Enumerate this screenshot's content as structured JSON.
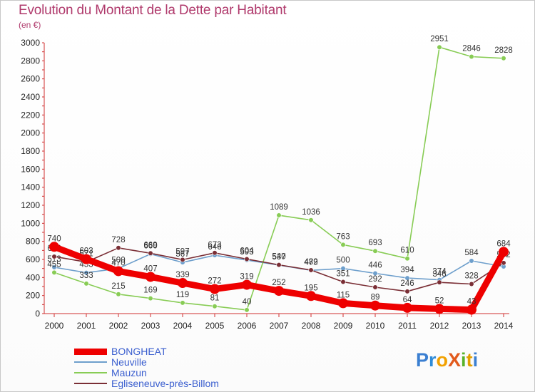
{
  "header": {
    "title": "Evolution du Montant de la Dette par Habitant",
    "subtitle": "(en €)"
  },
  "logo": "ProXiti",
  "chart_data": {
    "type": "line",
    "x": [
      "2000",
      "2001",
      "2002",
      "2003",
      "2004",
      "2005",
      "2006",
      "2007",
      "2008",
      "2009",
      "2010",
      "2011",
      "2012",
      "2013",
      "2014"
    ],
    "ylim": [
      0,
      3000
    ],
    "yticks": [
      0,
      200,
      400,
      600,
      800,
      1000,
      1200,
      1400,
      1600,
      1800,
      2000,
      2200,
      2400,
      2600,
      2800,
      3000
    ],
    "grid": false,
    "legend": "bottom-left",
    "series": [
      {
        "name": "BONGHEAT",
        "color": "#ee0000",
        "values": [
          740,
          603,
          470,
          407,
          339,
          272,
          319,
          252,
          195,
          115,
          89,
          64,
          52,
          43,
          684
        ],
        "labels": [
          "740",
          "603",
          "470",
          "407",
          "339",
          "272",
          "319",
          "252",
          "195",
          "115",
          "89",
          "64",
          "52",
          "43",
          "684"
        ]
      },
      {
        "name": "Neuville",
        "color": "#6e9fcc",
        "values": [
          513,
          453,
          500,
          660,
          567,
          646,
          593,
          537,
          479,
          500,
          446,
          394,
          374,
          584,
          521
        ],
        "labels": [
          "513",
          "453",
          "500",
          "660",
          "567",
          "646",
          "593",
          "537",
          "479",
          "500",
          "446",
          "394",
          "374",
          "584",
          ""
        ]
      },
      {
        "name": "Mauzun",
        "color": "#88cc55",
        "values": [
          455,
          333,
          215,
          169,
          119,
          81,
          40,
          1089,
          1036,
          763,
          693,
          610,
          2951,
          2846,
          2828
        ],
        "labels": [
          "455",
          "333",
          "215",
          "169",
          "119",
          "81",
          "40",
          "1089",
          "1036",
          "763",
          "693",
          "610",
          "2951",
          "2846",
          "2828"
        ]
      },
      {
        "name": "Egliseneuve-près-Billom",
        "color": "#7a2e35",
        "values": [
          632,
          571,
          728,
          669,
          597,
          673,
          604,
          540,
          482,
          351,
          292,
          246,
          346,
          328,
          562
        ],
        "labels": [
          "632",
          "571",
          "728",
          "669",
          "597",
          "673",
          "604",
          "540",
          "482",
          "351",
          "292",
          "246",
          "346",
          "328",
          "562"
        ]
      }
    ]
  }
}
